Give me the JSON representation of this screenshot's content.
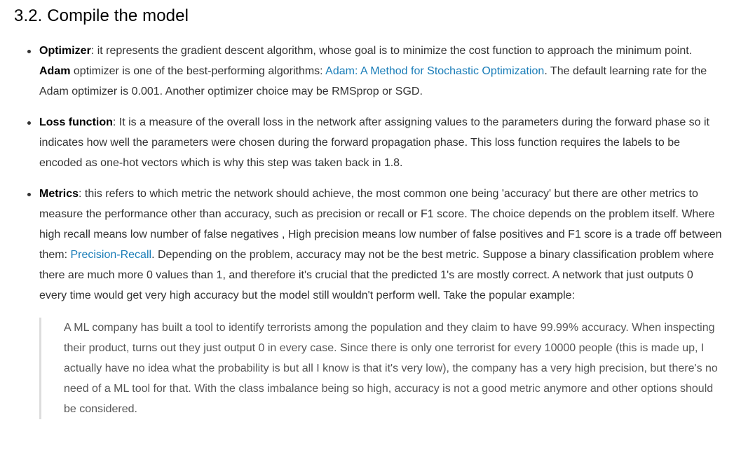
{
  "heading": "3.2. Compile the model",
  "bullets": {
    "optimizer": {
      "term": "Optimizer",
      "text1": ": it represents the gradient descent algorithm, whose goal is to minimize the cost function to approach the minimum point. ",
      "bold": "Adam",
      "text2": " optimizer is one of the best-performing algorithms: ",
      "link": "Adam: A Method for Stochastic Optimization",
      "text3": ". The default learning rate for the Adam optimizer is 0.001. Another optimizer choice may be RMSprop or SGD."
    },
    "loss": {
      "term": "Loss function",
      "text": ": It is a measure of the overall loss in the network after assigning values to the parameters during the forward phase so it indicates how well the parameters were chosen during the forward propagation phase. This loss function requires the labels to be encoded as one-hot vectors which is why this step was taken back in 1.8."
    },
    "metrics": {
      "term": "Metrics",
      "text1": ": this refers to which metric the network should achieve, the most common one being 'accuracy' but there are other metrics to measure the performance other than accuracy, such as precision or recall or F1 score. The choice depends on the problem itself. Where high recall means low number of false negatives , High precision means low number of false positives and F1 score is a trade off between them: ",
      "link": "Precision-Recall",
      "text2": ". Depending on the problem, accuracy may not be the best metric. Suppose a binary classification problem where there are much more 0 values than 1, and therefore it's crucial that the predicted 1's are mostly correct. A network that just outputs 0 every time would get very high accuracy but the model still wouldn't perform well. Take the popular example:"
    }
  },
  "quote": "A ML company has built a tool to identify terrorists among the population and they claim to have 99.99% accuracy. When inspecting their product, turns out they just output 0 in every case. Since there is only one terrorist for every 10000 people (this is made up, I actually have no idea what the probability is but all I know is that it's very low), the company has a very high precision, but there's no need of a ML tool for that. With the class imbalance being so high, accuracy is not a good metric anymore and other options should be considered."
}
